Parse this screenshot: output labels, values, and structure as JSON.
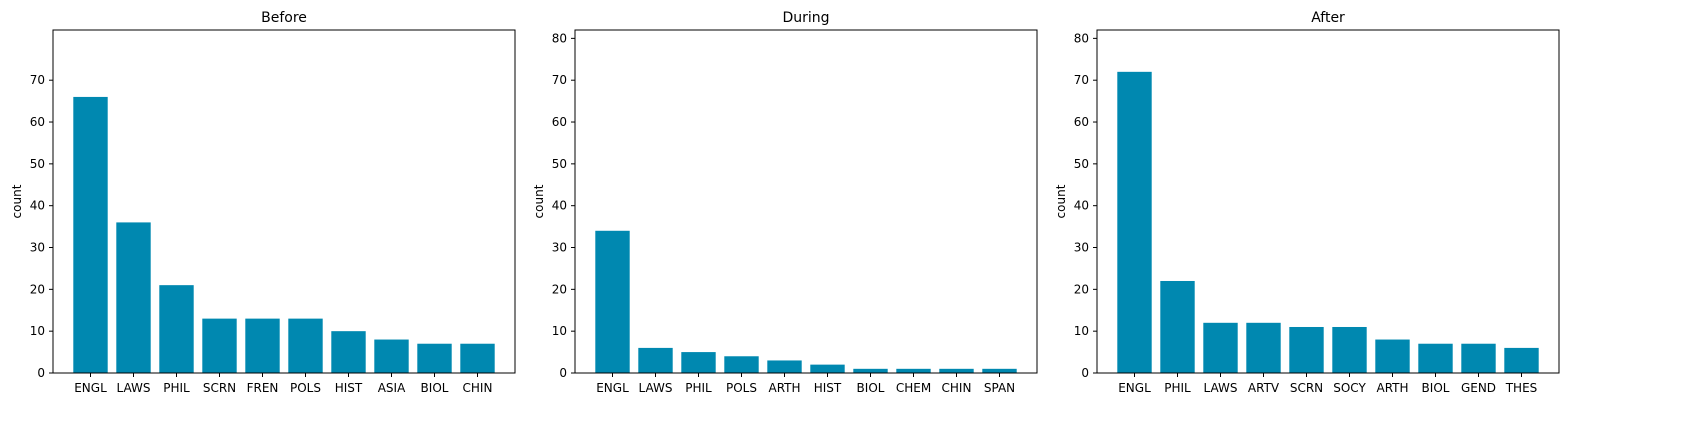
{
  "chart_data": [
    {
      "type": "bar",
      "title": "Before",
      "ylabel": "count",
      "ylim": [
        0,
        82
      ],
      "yticks": [
        0,
        10,
        20,
        30,
        40,
        50,
        60,
        70
      ],
      "categories": [
        "ENGL",
        "LAWS",
        "PHIL",
        "SCRN",
        "FREN",
        "POLS",
        "HIST",
        "ASIA",
        "BIOL",
        "CHIN"
      ],
      "values": [
        66,
        36,
        21,
        13,
        13,
        13,
        10,
        8,
        7,
        7
      ],
      "color": "#0088b0",
      "grid": false
    },
    {
      "type": "bar",
      "title": "During",
      "ylabel": "count",
      "ylim": [
        0,
        82
      ],
      "yticks": [
        0,
        10,
        20,
        30,
        40,
        50,
        60,
        70,
        80
      ],
      "categories": [
        "ENGL",
        "LAWS",
        "PHIL",
        "POLS",
        "ARTH",
        "HIST",
        "BIOL",
        "CHEM",
        "CHIN",
        "SPAN"
      ],
      "values": [
        34,
        6,
        5,
        4,
        3,
        2,
        1,
        1,
        1,
        1
      ],
      "color": "#0088b0",
      "grid": false
    },
    {
      "type": "bar",
      "title": "After",
      "ylabel": "count",
      "ylim": [
        0,
        82
      ],
      "yticks": [
        0,
        10,
        20,
        30,
        40,
        50,
        60,
        70,
        80
      ],
      "categories": [
        "ENGL",
        "PHIL",
        "LAWS",
        "ARTV",
        "SCRN",
        "SOCY",
        "ARTH",
        "BIOL",
        "GEND",
        "THES"
      ],
      "values": [
        72,
        22,
        12,
        12,
        11,
        11,
        8,
        7,
        7,
        6
      ],
      "color": "#0088b0",
      "grid": false
    }
  ]
}
